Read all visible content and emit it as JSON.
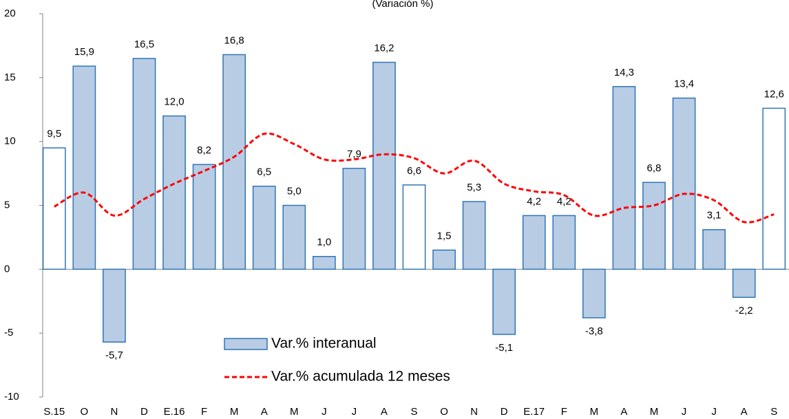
{
  "chart_data": {
    "type": "bar",
    "subtitle": "(Variación %)",
    "categories": [
      "S.15",
      "O",
      "N",
      "D",
      "E.16",
      "F",
      "M",
      "A",
      "M",
      "J",
      "J",
      "A",
      "S",
      "O",
      "N",
      "D",
      "E.17",
      "F",
      "M",
      "A",
      "M",
      "J",
      "J",
      "A",
      "S"
    ],
    "ylim": [
      -10,
      20
    ],
    "yticks": [
      -10,
      -5,
      0,
      5,
      10,
      15,
      20
    ],
    "bar_stroke": "#2e75b6",
    "series": [
      {
        "name": "Var.% interanual",
        "type": "bar",
        "colors": [
          "#ffffff",
          "#b8cce4",
          "#b8cce4",
          "#b8cce4",
          "#b8cce4",
          "#b8cce4",
          "#b8cce4",
          "#b8cce4",
          "#b8cce4",
          "#b8cce4",
          "#b8cce4",
          "#b8cce4",
          "#ffffff",
          "#b8cce4",
          "#b8cce4",
          "#b8cce4",
          "#b8cce4",
          "#b8cce4",
          "#b8cce4",
          "#b8cce4",
          "#b8cce4",
          "#b8cce4",
          "#b8cce4",
          "#b8cce4",
          "#ffffff"
        ],
        "values": [
          9.5,
          15.9,
          -5.7,
          16.5,
          12.0,
          8.2,
          16.8,
          6.5,
          5.0,
          1.0,
          7.9,
          16.2,
          6.6,
          1.5,
          5.3,
          -5.1,
          4.2,
          4.2,
          -3.8,
          14.3,
          6.8,
          13.4,
          3.1,
          -2.2,
          12.6
        ],
        "value_labels": [
          "9,5",
          "15,9",
          "-5,7",
          "16,5",
          "12,0",
          "8,2",
          "16,8",
          "6,5",
          "5,0",
          "1,0",
          "7,9",
          "16,2",
          "6,6",
          "1,5",
          "5,3",
          "-5,1",
          "4,2",
          "4,2",
          "-3,8",
          "14,3",
          "6,8",
          "13,4",
          "3,1",
          "-2,2",
          "12,6"
        ]
      },
      {
        "name": "Var.% acumulada 12 meses",
        "type": "line",
        "color": "#ff0000",
        "values": [
          4.9,
          6.0,
          4.2,
          5.5,
          6.7,
          7.7,
          8.8,
          10.6,
          9.8,
          8.6,
          8.6,
          9.0,
          8.7,
          7.5,
          8.5,
          6.7,
          6.1,
          5.8,
          4.2,
          4.8,
          5.0,
          5.9,
          5.4,
          3.7,
          4.3
        ]
      }
    ]
  }
}
